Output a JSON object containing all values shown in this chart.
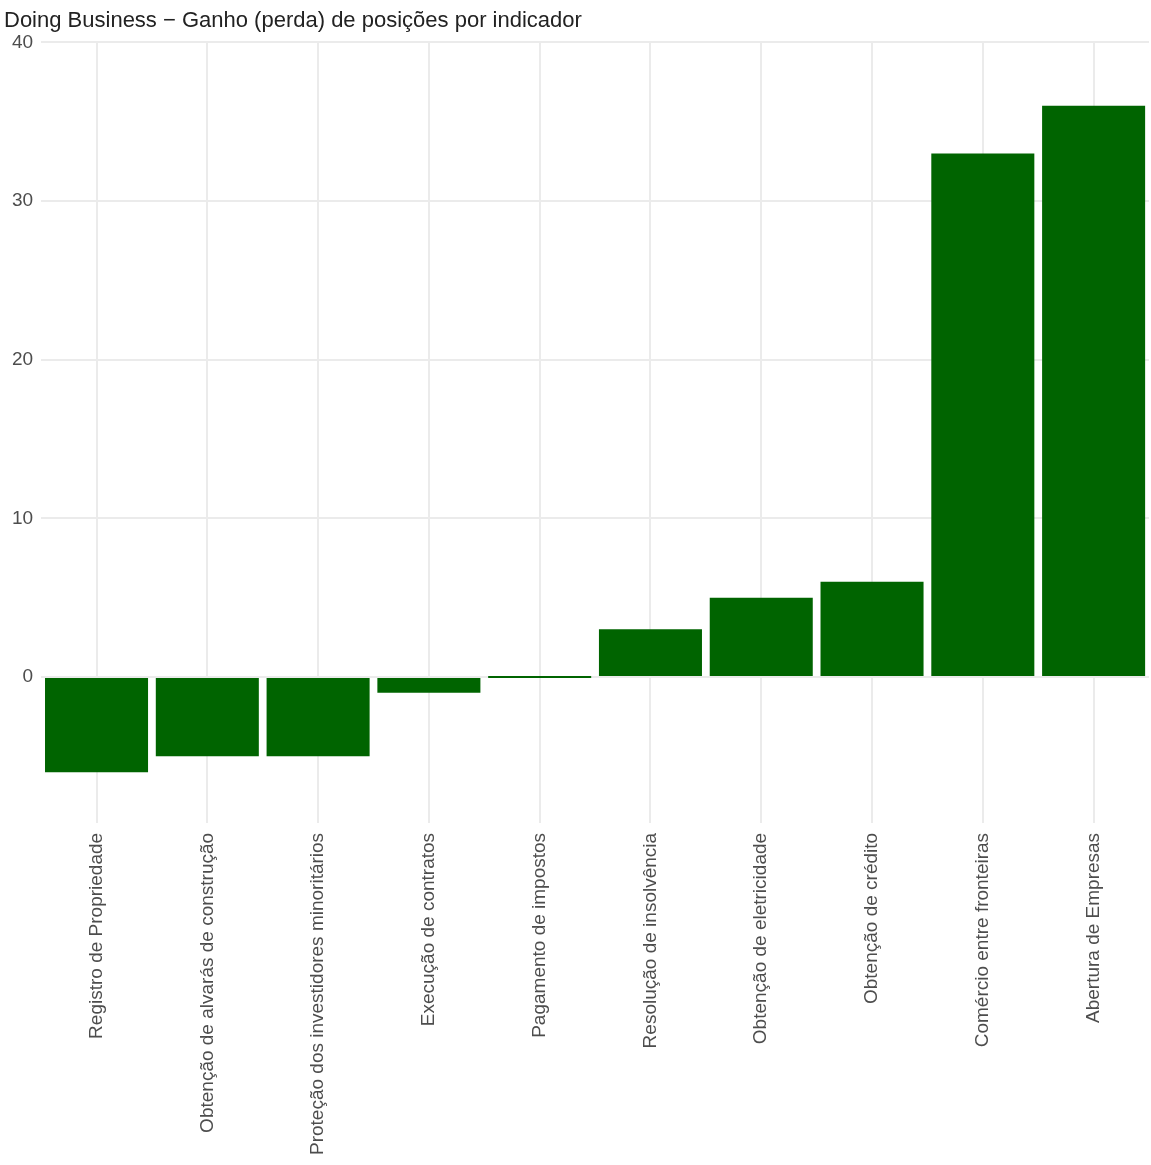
{
  "chart_data": {
    "type": "bar",
    "title": "Doing Business − Ganho (perda) de posições por indicador",
    "categories": [
      "Registro de Propriedade",
      "Obtenção de alvarás de construção",
      "Proteção dos investidores minoritários",
      "Execução de contratos",
      "Pagamento de impostos",
      "Resolução de insolvência",
      "Obtenção de eletricidade",
      "Obtenção de crédito",
      "Comércio entre fronteiras",
      "Abertura de Empresas"
    ],
    "values": [
      -6,
      -5,
      -5,
      -1,
      0,
      3,
      5,
      6,
      33,
      36
    ],
    "color": "#006400",
    "ylim": [
      -9.2,
      40
    ],
    "yticks": [
      0,
      10,
      20,
      30,
      40
    ],
    "grid": true,
    "legend": false
  }
}
